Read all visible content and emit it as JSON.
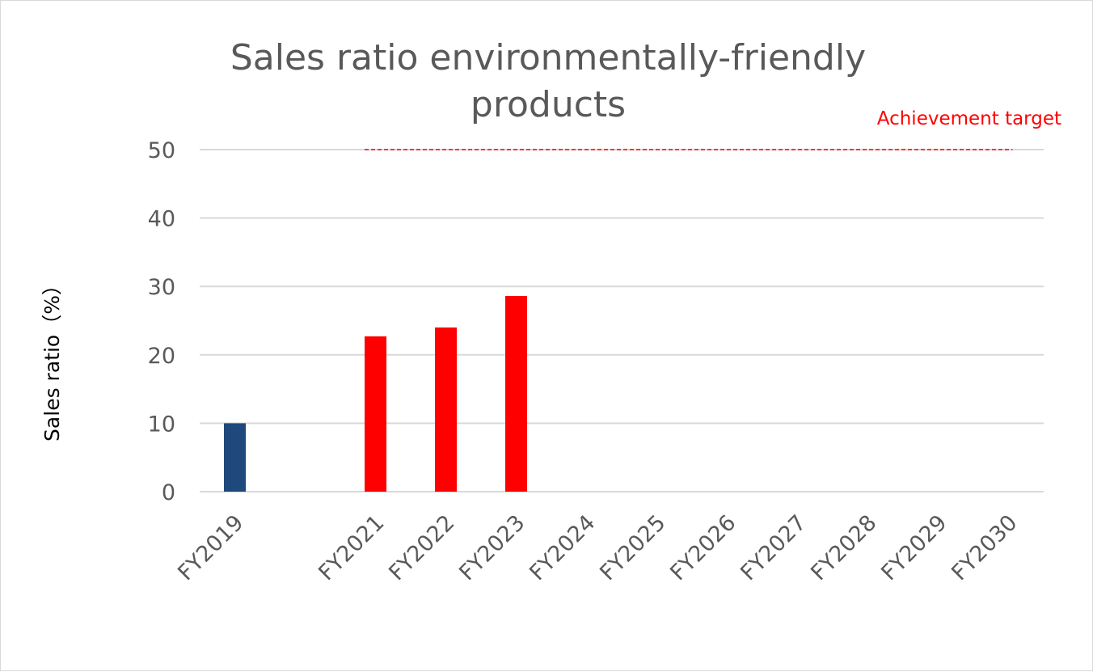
{
  "chart_data": {
    "type": "bar",
    "title_lines": [
      "Sales ratio environmentally-friendly",
      "products"
    ],
    "ylabel": "Sales ratio（%）",
    "xlabel": "",
    "ylim": [
      0,
      50
    ],
    "yticks": [
      "0",
      "10",
      "20",
      "30",
      "40",
      "50"
    ],
    "ytick_values": [
      0,
      10,
      20,
      30,
      40,
      50
    ],
    "grid": true,
    "categories": [
      "FY2019",
      "",
      "FY2021",
      "FY2022",
      "FY2023",
      "FY2024",
      "FY2025",
      "FY2026",
      "FY2027",
      "FY2028",
      "FY2029",
      "FY2030"
    ],
    "values": [
      10,
      null,
      22.7,
      24,
      28.6,
      null,
      null,
      null,
      null,
      null,
      null,
      null
    ],
    "bar_colors": [
      "#1f497d",
      "#ff0000",
      "#ff0000",
      "#ff0000",
      "#ff0000",
      "#ff0000",
      "#ff0000",
      "#ff0000",
      "#ff0000",
      "#ff0000",
      "#ff0000",
      "#ff0000"
    ],
    "target": {
      "label": "Achievement target",
      "value": 50,
      "from_category": "FY2021",
      "to_category": "FY2030",
      "color": "#ff0000"
    },
    "colors": {
      "axis_text": "#595959",
      "gridline": "#d9d9d9",
      "baseline": "#d9d9d9"
    }
  }
}
